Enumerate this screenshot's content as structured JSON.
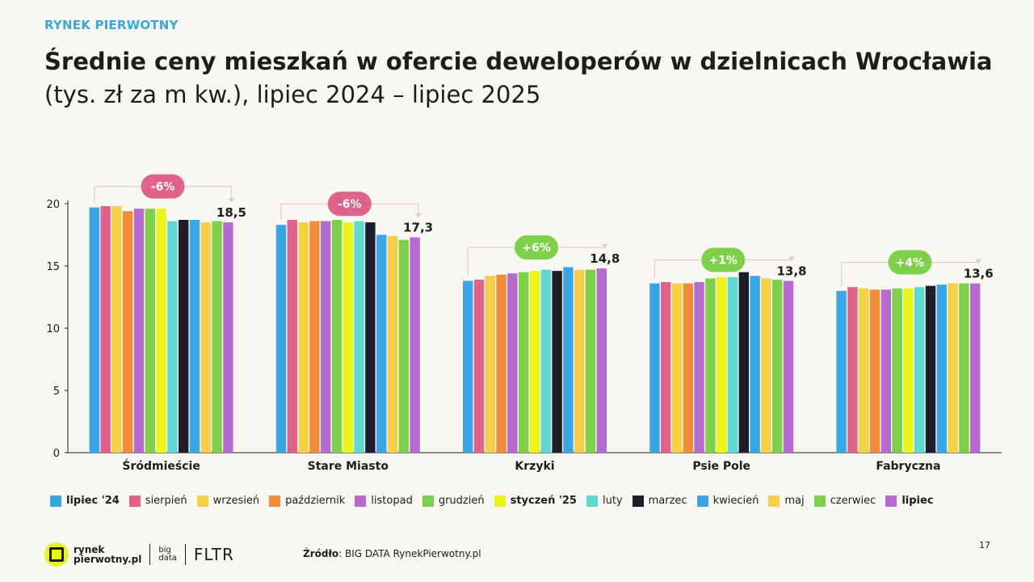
{
  "header": {
    "kicker": "RYNEK PIERWOTNY",
    "title_line1": "Średnie ceny mieszkań w ofercie deweloperów w dzielnicach Wrocławia",
    "title_line2": "(tys. zł za m kw.), lipiec 2024 – lipiec 2025"
  },
  "chart_data": {
    "type": "bar",
    "title": "Średnie ceny mieszkań w ofercie deweloperów w dzielnicach Wrocławia (tys. zł za m kw.), lipiec 2024 – lipiec 2025",
    "xlabel": "",
    "ylabel": "",
    "ylim": [
      0,
      20
    ],
    "yticks": [
      0,
      5,
      10,
      15,
      20
    ],
    "grid": false,
    "legend_position": "bottom",
    "categories": [
      "Śródmieście",
      "Stare Miasto",
      "Krzyki",
      "Psie Pole",
      "Fabryczna"
    ],
    "series": [
      {
        "name": "lipiec '24",
        "color": "#3aa6e6",
        "bold": true,
        "values": [
          19.7,
          18.3,
          13.8,
          13.6,
          13.0
        ]
      },
      {
        "name": "sierpień",
        "color": "#e0638b",
        "bold": false,
        "values": [
          19.8,
          18.7,
          13.9,
          13.7,
          13.3
        ]
      },
      {
        "name": "wrzesień",
        "color": "#f5cf45",
        "bold": false,
        "values": [
          19.8,
          18.5,
          14.2,
          13.6,
          13.2
        ]
      },
      {
        "name": "październik",
        "color": "#f08c3a",
        "bold": false,
        "values": [
          19.4,
          18.6,
          14.3,
          13.6,
          13.1
        ]
      },
      {
        "name": "listopad",
        "color": "#b76bcf",
        "bold": false,
        "values": [
          19.6,
          18.6,
          14.4,
          13.7,
          13.1
        ]
      },
      {
        "name": "grudzień",
        "color": "#7ed04b",
        "bold": false,
        "values": [
          19.6,
          18.7,
          14.5,
          14.0,
          13.2
        ]
      },
      {
        "name": "styczeń '25",
        "color": "#eaf51b",
        "bold": true,
        "values": [
          19.6,
          18.5,
          14.6,
          14.1,
          13.2
        ]
      },
      {
        "name": "luty",
        "color": "#5fd9cf",
        "bold": false,
        "values": [
          18.6,
          18.6,
          14.7,
          14.1,
          13.3
        ]
      },
      {
        "name": "marzec",
        "color": "#1d1d2b",
        "bold": false,
        "values": [
          18.7,
          18.5,
          14.6,
          14.5,
          13.4
        ]
      },
      {
        "name": "kwiecień",
        "color": "#3aa6e6",
        "bold": false,
        "values": [
          18.7,
          17.5,
          14.9,
          14.2,
          13.5
        ]
      },
      {
        "name": "maj",
        "color": "#f5cf45",
        "bold": false,
        "values": [
          18.5,
          17.4,
          14.7,
          14.0,
          13.6
        ]
      },
      {
        "name": "czerwiec",
        "color": "#7ed04b",
        "bold": false,
        "values": [
          18.6,
          17.1,
          14.7,
          13.9,
          13.6
        ]
      },
      {
        "name": "lipiec",
        "color": "#b76bcf",
        "bold": true,
        "values": [
          18.5,
          17.3,
          14.8,
          13.8,
          13.6
        ]
      }
    ],
    "end_labels": [
      "18,5",
      "17,3",
      "14,8",
      "13,8",
      "13,6"
    ],
    "change_badges": [
      {
        "text": "-6%",
        "color": "#e0638b"
      },
      {
        "text": "-6%",
        "color": "#e0638b"
      },
      {
        "text": "+6%",
        "color": "#7ed04b"
      },
      {
        "text": "+1%",
        "color": "#7ed04b"
      },
      {
        "text": "+4%",
        "color": "#7ed04b"
      }
    ]
  },
  "footer": {
    "logo_line1": "rynek",
    "logo_line2": "pierwotny.pl",
    "bigdata_line1": "big",
    "bigdata_line2": "data",
    "fltr": "FLTR",
    "source_label": "Źródło",
    "source_text": ": BIG DATA RynekPierwotny.pl",
    "page_number": "17",
    "disclaimer": ""
  }
}
